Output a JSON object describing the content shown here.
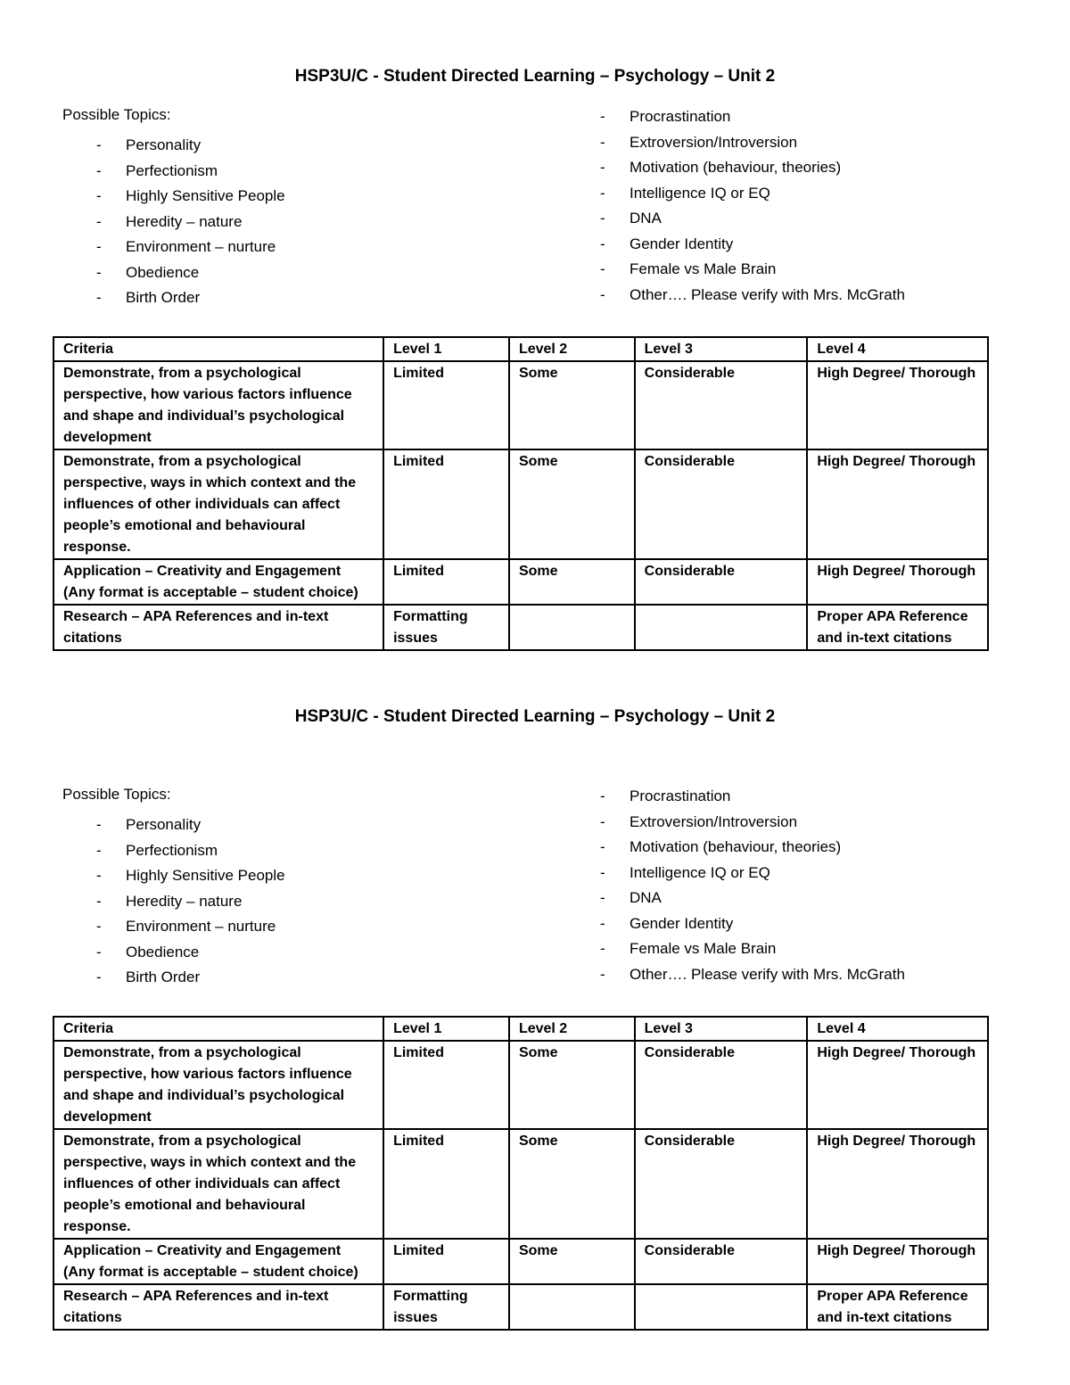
{
  "title": "HSP3U/C - Student Directed Learning – Psychology – Unit 2",
  "topics_label": "Possible Topics:",
  "bullet": "-",
  "topics_left": [
    "Personality",
    "Perfectionism",
    "Highly Sensitive People",
    "Heredity – nature",
    "Environment – nurture",
    "Obedience",
    "Birth Order"
  ],
  "topics_right": [
    "Procrastination",
    "Extroversion/Introversion",
    "Motivation (behaviour, theories)",
    "Intelligence IQ or EQ",
    "DNA",
    "Gender Identity",
    "Female vs Male Brain",
    "Other…. Please verify with Mrs. McGrath"
  ],
  "table": {
    "headers": [
      "Criteria",
      "Level 1",
      "Level 2",
      "Level 3",
      "Level 4"
    ],
    "rows": [
      [
        "Demonstrate, from a psychological perspective, how various factors influence and shape and individual’s psychological development",
        "Limited",
        "Some",
        "Considerable",
        "High Degree/ Thorough"
      ],
      [
        "Demonstrate, from a psychological perspective, ways in which context and the influences of other individuals can affect people’s emotional and behavioural response.",
        "Limited",
        "Some",
        "Considerable",
        "High Degree/ Thorough"
      ],
      [
        "Application – Creativity and Engagement (Any format is acceptable – student choice)",
        "Limited",
        "Some",
        "Considerable",
        "High Degree/ Thorough"
      ],
      [
        "Research – APA References and in-text citations",
        "Formatting issues",
        "",
        "",
        "Proper APA Reference and in-text citations"
      ]
    ]
  }
}
